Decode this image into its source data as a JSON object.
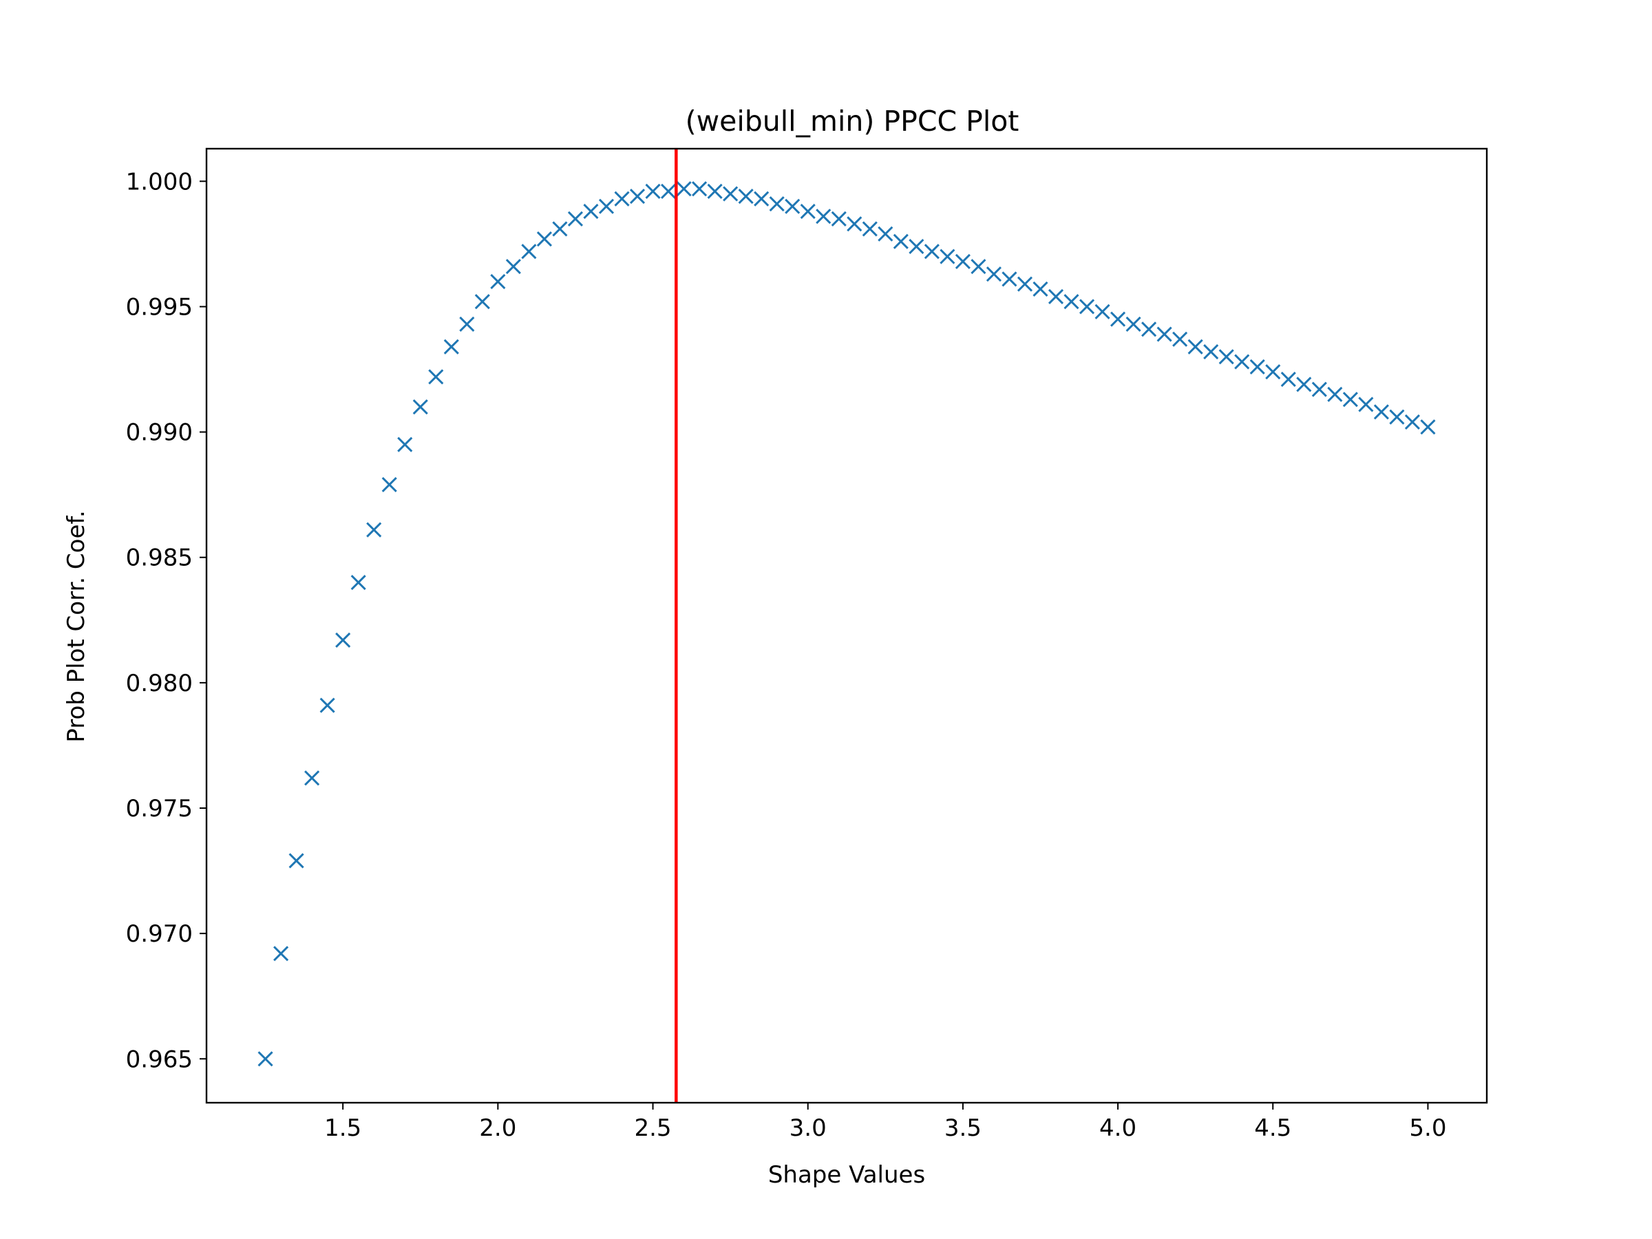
{
  "chart_data": {
    "type": "scatter",
    "title": "(weibull_min) PPCC Plot",
    "xlabel": "Shape Values",
    "ylabel": "Prob Plot Corr. Coef.",
    "xlim": [
      1.06,
      5.19
    ],
    "ylim": [
      0.96325,
      1.0013
    ],
    "xticks": [
      1.5,
      2.0,
      2.5,
      3.0,
      3.5,
      4.0,
      4.5,
      5.0
    ],
    "xtick_labels": [
      "1.5",
      "2.0",
      "2.5",
      "3.0",
      "3.5",
      "4.0",
      "4.5",
      "5.0"
    ],
    "yticks": [
      0.965,
      0.97,
      0.975,
      0.98,
      0.985,
      0.99,
      0.995,
      1.0
    ],
    "ytick_labels": [
      "0.965",
      "0.970",
      "0.975",
      "0.980",
      "0.985",
      "0.990",
      "0.995",
      "1.000"
    ],
    "grid": false,
    "marker": "x",
    "series_color": "#1f77b4",
    "vline": {
      "x": 2.575,
      "color": "#ff0000"
    },
    "x": [
      1.25,
      1.3,
      1.35,
      1.4,
      1.45,
      1.5,
      1.55,
      1.6,
      1.65,
      1.7,
      1.75,
      1.8,
      1.85,
      1.9,
      1.95,
      2.0,
      2.05,
      2.1,
      2.15,
      2.2,
      2.25,
      2.3,
      2.35,
      2.4,
      2.45,
      2.5,
      2.55,
      2.6,
      2.65,
      2.7,
      2.75,
      2.8,
      2.85,
      2.9,
      2.95,
      3.0,
      3.05,
      3.1,
      3.15,
      3.2,
      3.25,
      3.3,
      3.35,
      3.4,
      3.45,
      3.5,
      3.55,
      3.6,
      3.65,
      3.7,
      3.75,
      3.8,
      3.85,
      3.9,
      3.95,
      4.0,
      4.05,
      4.1,
      4.15,
      4.2,
      4.25,
      4.3,
      4.35,
      4.4,
      4.45,
      4.5,
      4.55,
      4.6,
      4.65,
      4.7,
      4.75,
      4.8,
      4.85,
      4.9,
      4.95,
      5.0
    ],
    "y": [
      0.965,
      0.9692,
      0.9729,
      0.9762,
      0.9791,
      0.9817,
      0.984,
      0.9861,
      0.9879,
      0.9895,
      0.991,
      0.9922,
      0.9934,
      0.9943,
      0.9952,
      0.996,
      0.9966,
      0.9972,
      0.9977,
      0.9981,
      0.9985,
      0.9988,
      0.999,
      0.9993,
      0.9994,
      0.9996,
      0.9996,
      0.9997,
      0.9997,
      0.9996,
      0.9995,
      0.9994,
      0.9993,
      0.9991,
      0.999,
      0.9988,
      0.9986,
      0.9985,
      0.9983,
      0.9981,
      0.9979,
      0.9976,
      0.9974,
      0.9972,
      0.997,
      0.9968,
      0.9966,
      0.9963,
      0.9961,
      0.9959,
      0.9957,
      0.9954,
      0.9952,
      0.995,
      0.9948,
      0.9945,
      0.9943,
      0.9941,
      0.9939,
      0.9937,
      0.9934,
      0.9932,
      0.993,
      0.9928,
      0.9926,
      0.9924,
      0.9921,
      0.9919,
      0.9917,
      0.9915,
      0.9913,
      0.9911,
      0.9908,
      0.9906,
      0.9904,
      0.9902
    ]
  }
}
